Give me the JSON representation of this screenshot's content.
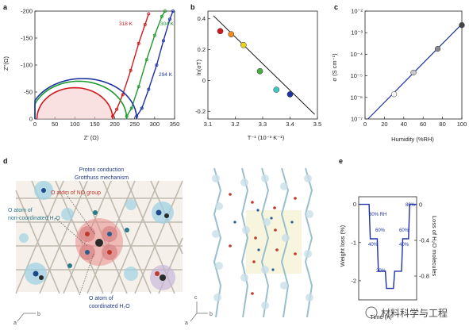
{
  "watermark": "材料科学与工程",
  "panel_labels": {
    "a": "a",
    "b": "b",
    "c": "c",
    "d": "d",
    "e": "e"
  },
  "panel_d": {
    "title_line1": "Proton conduction",
    "title_line2": "Grotthuss mechanism",
    "label_no": "O atom of NO group",
    "label_noncoord_line1": "O atom of",
    "label_noncoord_line2": "non-coordinated H₂O",
    "label_coord_line1": "O atom of",
    "label_coord_line2": "coordinated H₂O",
    "axis_a": "a",
    "axis_b": "b",
    "axis_c": "c",
    "axis_a2": "a",
    "axis_b2": "b",
    "colors": {
      "navy": "#1f3a8a",
      "red": "#c0392b",
      "teal": "#2a7a8c"
    }
  },
  "chart_data": [
    {
      "id": "a",
      "type": "scatter",
      "xlabel": "Z' (Ω)",
      "ylabel": "Z''(Ω)",
      "xlim": [
        0,
        350
      ],
      "ylim": [
        -200,
        0
      ],
      "xticks": [
        "0",
        "50",
        "100",
        "150",
        "200",
        "250",
        "300",
        "350"
      ],
      "yticks": [
        "0",
        "-50",
        "-100",
        "-150",
        "-200"
      ],
      "series": [
        {
          "name": "318 K",
          "color": "#d0191c",
          "arc": {
            "center": 100,
            "radius": 95,
            "height": 58
          },
          "tail": [
            [
              195,
              -5
            ],
            [
              205,
              -18
            ],
            [
              220,
              -45
            ],
            [
              240,
              -90
            ],
            [
              260,
              -140
            ],
            [
              276,
              -175
            ],
            [
              285,
              -195
            ]
          ]
        },
        {
          "name": "304 K",
          "color": "#1f9a2d",
          "arc": {
            "center": 110,
            "radius": 120,
            "height": 70
          },
          "tail": [
            [
              230,
              -5
            ],
            [
              242,
              -20
            ],
            [
              260,
              -60
            ],
            [
              280,
              -110
            ],
            [
              300,
              -155
            ],
            [
              318,
              -190
            ],
            [
              326,
              -200
            ]
          ]
        },
        {
          "name": "294 K",
          "color": "#1d32a3",
          "arc": {
            "center": 120,
            "radius": 135,
            "height": 75
          },
          "tail": [
            [
              255,
              -5
            ],
            [
              268,
              -20
            ],
            [
              285,
              -55
            ],
            [
              305,
              -100
            ],
            [
              322,
              -145
            ],
            [
              338,
              -185
            ],
            [
              346,
              -200
            ]
          ]
        }
      ],
      "label_318": "318 K",
      "label_304": "304 K",
      "label_294": "294 K"
    },
    {
      "id": "b",
      "type": "scatter",
      "xlabel": "T⁻¹ (10⁻³ K⁻¹)",
      "ylabel": "ln(σT)",
      "xlim": [
        3.1,
        3.5
      ],
      "ylim": [
        -0.25,
        0.45
      ],
      "xticks": [
        "3.1",
        "3.2",
        "3.3",
        "3.4",
        "3.5"
      ],
      "yticks": [
        "0.4",
        "0.2",
        "0",
        "-0.2"
      ],
      "points": [
        {
          "x": 3.145,
          "y": 0.32,
          "color": "#d0191c"
        },
        {
          "x": 3.185,
          "y": 0.3,
          "color": "#f08a24"
        },
        {
          "x": 3.23,
          "y": 0.23,
          "color": "#e8d21d"
        },
        {
          "x": 3.29,
          "y": 0.06,
          "color": "#49a942"
        },
        {
          "x": 3.35,
          "y": -0.06,
          "color": "#3fc7c7"
        },
        {
          "x": 3.4,
          "y": -0.09,
          "color": "#1d32a3"
        }
      ],
      "fit": [
        [
          3.12,
          0.42
        ],
        [
          3.49,
          -0.22
        ]
      ]
    },
    {
      "id": "c",
      "type": "scatter",
      "xlabel": "Humidity (%RH)",
      "ylabel": "σ (S cm⁻¹)",
      "xlim": [
        0,
        100
      ],
      "ylim_log10": [
        -7,
        -2
      ],
      "xticks": [
        "0",
        "20",
        "40",
        "60",
        "80",
        "100"
      ],
      "yticks": [
        "10⁻²",
        "10⁻³",
        "10⁻⁴",
        "10⁻⁵",
        "10⁻⁶",
        "10⁻⁷"
      ],
      "points": [
        {
          "x": 30,
          "y_log10": -5.85,
          "color": "#f4f4f4"
        },
        {
          "x": 50,
          "y_log10": -4.85,
          "color": "#c8c8c8"
        },
        {
          "x": 75,
          "y_log10": -3.75,
          "color": "#8a8a8a"
        },
        {
          "x": 100,
          "y_log10": -2.65,
          "color": "#444444"
        }
      ],
      "fit": [
        [
          3,
          -7.0
        ],
        [
          100,
          -2.6
        ]
      ]
    },
    {
      "id": "e",
      "type": "line",
      "xlabel": "Time (h)",
      "ylabel": "Weight loss (%)",
      "ylabel_right": "Loss of H₂O molecules",
      "ylim": [
        -2.5,
        0.2
      ],
      "yticks": [
        "0",
        "-1",
        "-2"
      ],
      "yticks_right": [
        "0",
        "-0.4",
        "-0.8"
      ],
      "steps": [
        {
          "label": "80% RH",
          "x0": 0.0,
          "x1": 0.18,
          "y": 0.0
        },
        {
          "label": "60%",
          "x0": 0.2,
          "x1": 0.32,
          "y": -0.9
        },
        {
          "label": "40%",
          "x0": 0.34,
          "x1": 0.46,
          "y": -1.75
        },
        {
          "label": "20%",
          "x0": 0.48,
          "x1": 0.6,
          "y": -2.2
        },
        {
          "label": "40%",
          "x0": 0.62,
          "x1": 0.74,
          "y": -1.75
        },
        {
          "label": "60%",
          "x0": 0.76,
          "x1": 0.86,
          "y": -0.9
        },
        {
          "label": "80%",
          "x0": 0.88,
          "x1": 1.0,
          "y": 0.0
        }
      ],
      "label_80rh": "80% RH",
      "label_60a": "60%",
      "label_40a": "40%",
      "label_20": "20%",
      "label_40b": "40%",
      "label_60b": "60%",
      "label_80": "80%"
    }
  ]
}
